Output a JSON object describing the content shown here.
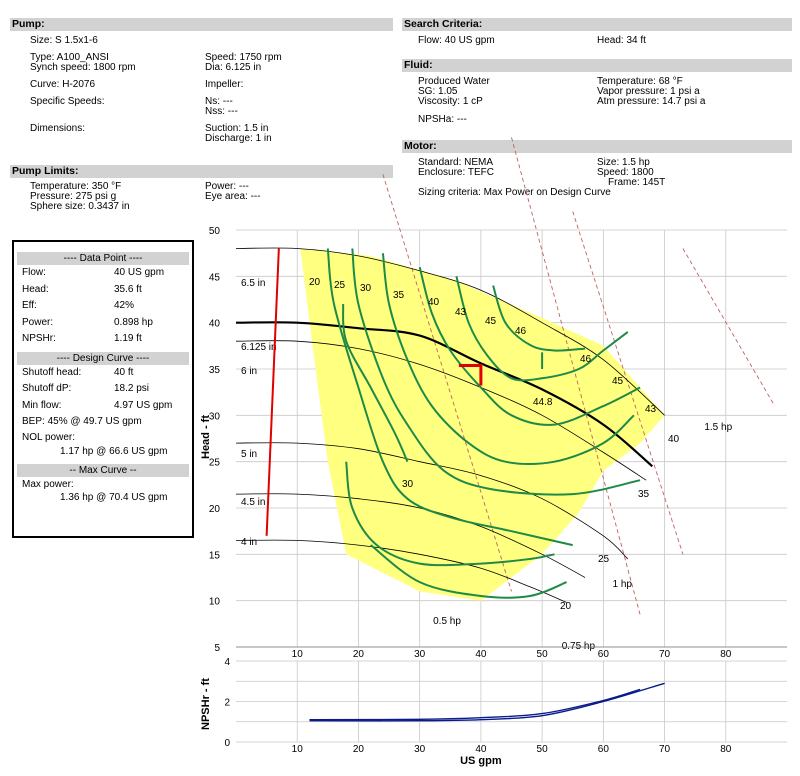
{
  "pump": {
    "header": "Pump:",
    "size": "Size:  S 1.5x1-6",
    "type": "Type:  A100_ANSI",
    "synch_speed": "Synch speed:  1800 rpm",
    "speed": "Speed:  1750 rpm",
    "dia": "Dia:  6.125 in",
    "curve": "Curve:  H-2076",
    "impeller": "Impeller:",
    "specific_speeds": "Specific Speeds:",
    "ns": "Ns:  ---",
    "nss": "Nss:  ---",
    "dimensions": "Dimensions:",
    "suction": "Suction:  1.5 in",
    "discharge": "Discharge:  1 in"
  },
  "limits": {
    "header": "Pump Limits:",
    "temperature": "Temperature:  350 °F",
    "pressure": "Pressure:  275 psi g",
    "sphere": "Sphere size:  0.3437 in",
    "power": "Power:  ---",
    "eye": "Eye area:  ---"
  },
  "search": {
    "header": "Search Criteria:",
    "flow": "Flow:  40 US gpm",
    "head": "Head:  34 ft"
  },
  "fluid": {
    "header": "Fluid:",
    "name": "Produced Water",
    "sg": "SG:  1.05",
    "viscosity": "Viscosity:  1 cP",
    "npsha": "NPSHa:  ---",
    "temperature": "Temperature:  68 °F",
    "vapor": "Vapor pressure:  1 psi a",
    "atm": "Atm pressure:  14.7 psi a"
  },
  "motor": {
    "header": "Motor:",
    "standard": "Standard:  NEMA",
    "enclosure": "Enclosure:  TEFC",
    "size": "Size:  1.5 hp",
    "speed": "Speed:  1800",
    "frame": "Frame:  145T",
    "sizing": "Sizing criteria:  Max Power on Design Curve"
  },
  "data_point": {
    "header": "---- Data Point ----",
    "rows": [
      {
        "k": "Flow:",
        "v": "40 US gpm"
      },
      {
        "k": "Head:",
        "v": "35.6 ft"
      },
      {
        "k": "Eff:",
        "v": "42%"
      },
      {
        "k": "Power:",
        "v": "0.898 hp"
      },
      {
        "k": "NPSHr:",
        "v": "1.19 ft"
      }
    ]
  },
  "design_curve": {
    "header": "---- Design Curve ----",
    "rows": [
      {
        "k": "Shutoff head:",
        "v": "40 ft"
      },
      {
        "k": "Shutoff dP:",
        "v": "18.2 psi"
      },
      {
        "k": "Min flow:",
        "v": "4.97 US gpm"
      }
    ],
    "bep": "BEP:  45% @ 49.7 US gpm",
    "nol_label": "NOL power:",
    "nol_value": "1.17 hp @ 66.6 US gpm"
  },
  "max_curve": {
    "header": "-- Max Curve --",
    "label": "Max power:",
    "value": "1.36 hp @ 70.4 US gpm"
  },
  "colors": {
    "efficiency": "#1e8a47",
    "region": "#ffff80",
    "limit": "#e00000",
    "npsh": "#0a1a8c",
    "grid": "#c8c8c8"
  },
  "chart_data": [
    {
      "type": "line",
      "ylabel": "Head - ft",
      "xlim": [
        0,
        90
      ],
      "ylim": [
        5,
        50
      ],
      "xticks": [
        10,
        20,
        30,
        40,
        50,
        60,
        70,
        80
      ],
      "yticks": [
        5,
        10,
        15,
        20,
        25,
        30,
        35,
        40,
        45,
        50
      ],
      "grid": true,
      "impeller_curves": [
        {
          "name": "6.5 in",
          "points": [
            [
              0,
              48
            ],
            [
              10,
              48
            ],
            [
              20,
              47.2
            ],
            [
              30,
              45.6
            ],
            [
              40,
              43.5
            ],
            [
              50,
              40
            ],
            [
              60,
              36
            ],
            [
              70,
              30
            ]
          ]
        },
        {
          "name": "6.125 in",
          "design": true,
          "points": [
            [
              0,
              40
            ],
            [
              10,
              40
            ],
            [
              20,
              39.4
            ],
            [
              30,
              38.6
            ],
            [
              40,
              35.6
            ],
            [
              50,
              32.8
            ],
            [
              60,
              29
            ],
            [
              68,
              24.5
            ]
          ]
        },
        {
          "name": "6 in",
          "points": [
            [
              0,
              38
            ],
            [
              10,
              38
            ],
            [
              20,
              37.2
            ],
            [
              30,
              35.5
            ],
            [
              40,
              33
            ],
            [
              50,
              30
            ],
            [
              60,
              26
            ],
            [
              67,
              23
            ]
          ]
        },
        {
          "name": "5 in",
          "points": [
            [
              0,
              27
            ],
            [
              10,
              27
            ],
            [
              20,
              26.4
            ],
            [
              30,
              25
            ],
            [
              40,
              23.5
            ],
            [
              50,
              21
            ],
            [
              60,
              17
            ],
            [
              64,
              14.5
            ]
          ]
        },
        {
          "name": "4.5 in",
          "points": [
            [
              0,
              21.5
            ],
            [
              10,
              21.5
            ],
            [
              20,
              21
            ],
            [
              30,
              20
            ],
            [
              40,
              18
            ],
            [
              50,
              15
            ],
            [
              57,
              12.5
            ]
          ]
        },
        {
          "name": "4 in",
          "points": [
            [
              0,
              16.5
            ],
            [
              10,
              16.5
            ],
            [
              20,
              16
            ],
            [
              30,
              15
            ],
            [
              40,
              13.5
            ],
            [
              48,
              11.5
            ],
            [
              54,
              9.8
            ]
          ]
        }
      ],
      "efficiency_labels": [
        "20",
        "25",
        "30",
        "35",
        "40",
        "43",
        "45",
        "46",
        "44.8",
        "46",
        "45",
        "43",
        "40",
        "35",
        "30",
        "25",
        "20"
      ],
      "power_lines": [
        {
          "name": "0.5 hp",
          "points": [
            [
              24,
              56
            ],
            [
              45,
              11
            ]
          ]
        },
        {
          "name": "0.75 hp",
          "points": [
            [
              45,
              60
            ],
            [
              66,
              8.5
            ]
          ]
        },
        {
          "name": "1 hp",
          "points": [
            [
              55,
              52
            ],
            [
              73,
              15
            ]
          ]
        },
        {
          "name": "1.5 hp",
          "points": [
            [
              73,
              48
            ],
            [
              88,
              31
            ]
          ]
        }
      ],
      "min_diameter_line": [
        [
          5,
          17
        ],
        [
          7,
          48
        ]
      ],
      "data_point": {
        "x": 40,
        "y": 35.6
      }
    },
    {
      "type": "line",
      "ylabel": "NPSHr - ft",
      "xlabel": "US gpm",
      "xlim": [
        0,
        90
      ],
      "ylim": [
        0,
        4
      ],
      "xticks": [
        10,
        20,
        30,
        40,
        50,
        60,
        70,
        80
      ],
      "yticks": [
        0,
        2,
        4
      ],
      "grid": true,
      "series": [
        {
          "points": [
            [
              12,
              1.05
            ],
            [
              30,
              1.05
            ],
            [
              40,
              1.1
            ],
            [
              50,
              1.3
            ],
            [
              60,
              2.0
            ],
            [
              70,
              2.9
            ]
          ]
        },
        {
          "points": [
            [
              12,
              1.1
            ],
            [
              30,
              1.12
            ],
            [
              40,
              1.2
            ],
            [
              50,
              1.4
            ],
            [
              60,
              2.05
            ],
            [
              66,
              2.6
            ]
          ]
        }
      ]
    }
  ]
}
